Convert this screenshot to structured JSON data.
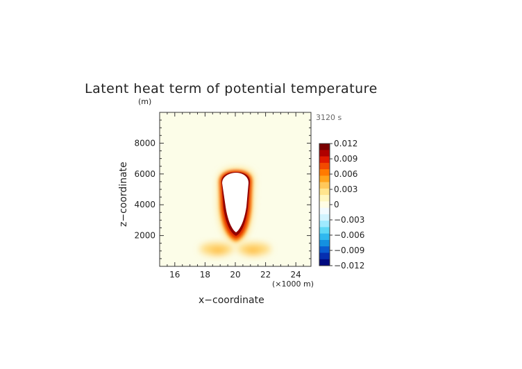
{
  "chart_data": {
    "type": "heatmap",
    "title": "Latent heat term of potential temperature",
    "y_unit_label": "(m)",
    "time_label": "3120 s",
    "xlabel": "x−coordinate",
    "ylabel": "z−coordinate",
    "x_unit_label": "(×1000 m)",
    "xlim": [
      15,
      25
    ],
    "ylim": [
      0,
      10000
    ],
    "x_ticks": [
      16,
      18,
      20,
      22,
      24
    ],
    "x_tick_labels": [
      "16",
      "18",
      "20",
      "22",
      "24"
    ],
    "y_ticks": [
      2000,
      4000,
      6000,
      8000
    ],
    "y_tick_labels": [
      "2000",
      "4000",
      "6000",
      "8000"
    ],
    "background_color": "#fcfde8",
    "colorbar": {
      "min": -0.012,
      "max": 0.012,
      "tick_values": [
        0.012,
        0.009,
        0.006,
        0.003,
        0,
        -0.003,
        -0.006,
        -0.009,
        -0.012
      ],
      "tick_labels": [
        "0.012",
        "0.009",
        "0.006",
        "0.003",
        "0",
        "−0.003",
        "−0.006",
        "−0.009",
        "−0.012"
      ],
      "colors_top_to_bottom": [
        "#7a0000",
        "#b00000",
        "#e01a00",
        "#f24a00",
        "#ff7a00",
        "#ffa41c",
        "#ffc85a",
        "#ffe58e",
        "#fff7c0",
        "#fffde6",
        "#f2fbff",
        "#d2f4ff",
        "#9feaff",
        "#5fd8f6",
        "#2fb8ef",
        "#1490e0",
        "#0a5cd0",
        "#062fb0",
        "#000a80"
      ]
    },
    "features": {
      "cloud_saturated_core": {
        "x": [
          19.1,
          20.6
        ],
        "z": [
          2200,
          6200
        ],
        "value": "above max"
      },
      "heating_rim_peak": 0.012,
      "lower_wing_left": {
        "x": [
          18,
          19.2
        ],
        "z": [
          700,
          1300
        ],
        "value": 0.004
      },
      "lower_wing_right": {
        "x": [
          20.8,
          22
        ],
        "z": [
          700,
          1300
        ],
        "value": 0.004
      }
    }
  }
}
